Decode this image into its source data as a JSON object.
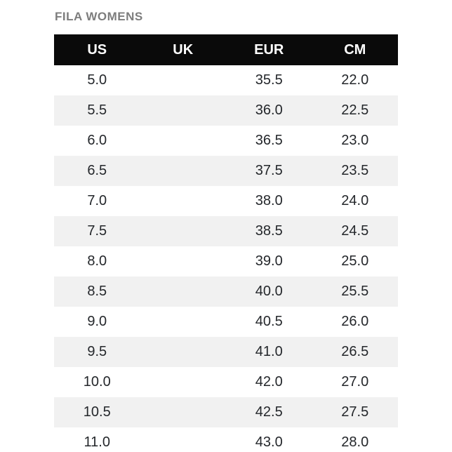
{
  "title": "FILA WOMENS",
  "chart_data": {
    "type": "table",
    "title": "FILA WOMENS",
    "columns": [
      "US",
      "UK",
      "EUR",
      "CM"
    ],
    "rows": [
      [
        "5.0",
        "",
        "35.5",
        "22.0"
      ],
      [
        "5.5",
        "",
        "36.0",
        "22.5"
      ],
      [
        "6.0",
        "",
        "36.5",
        "23.0"
      ],
      [
        "6.5",
        "",
        "37.5",
        "23.5"
      ],
      [
        "7.0",
        "",
        "38.0",
        "24.0"
      ],
      [
        "7.5",
        "",
        "38.5",
        "24.5"
      ],
      [
        "8.0",
        "",
        "39.0",
        "25.0"
      ],
      [
        "8.5",
        "",
        "40.0",
        "25.5"
      ],
      [
        "9.0",
        "",
        "40.5",
        "26.0"
      ],
      [
        "9.5",
        "",
        "41.0",
        "26.5"
      ],
      [
        "10.0",
        "",
        "42.0",
        "27.0"
      ],
      [
        "10.5",
        "",
        "42.5",
        "27.5"
      ],
      [
        "11.0",
        "",
        "43.0",
        "28.0"
      ]
    ],
    "layout": {
      "zebra_striping": true,
      "empty_column": "UK",
      "last_row_clipped": true
    }
  },
  "colors": {
    "page_bg": "#ffffff",
    "title_text": "#7d7d7d",
    "header_bg": "#0a0a0a",
    "header_text": "#ffffff",
    "stripe_bg": "#f1f1f1",
    "cell_text": "#24272b"
  }
}
